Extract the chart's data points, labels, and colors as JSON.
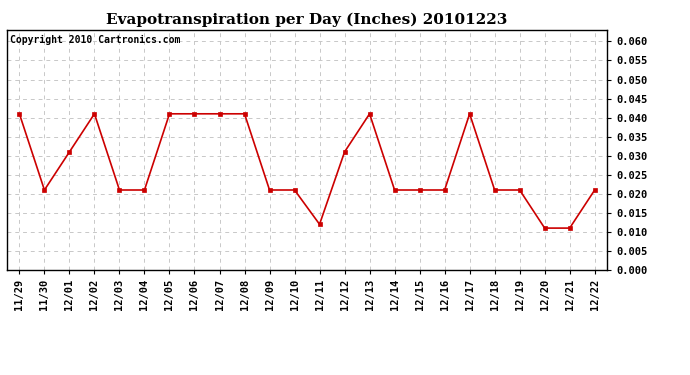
{
  "title": "Evapotranspiration per Day (Inches) 20101223",
  "copyright_text": "Copyright 2010 Cartronics.com",
  "x_labels": [
    "11/29",
    "11/30",
    "12/01",
    "12/02",
    "12/03",
    "12/04",
    "12/05",
    "12/06",
    "12/07",
    "12/08",
    "12/09",
    "12/10",
    "12/11",
    "12/12",
    "12/13",
    "12/14",
    "12/15",
    "12/16",
    "12/17",
    "12/18",
    "12/19",
    "12/20",
    "12/21",
    "12/22"
  ],
  "y_values": [
    0.041,
    0.021,
    0.031,
    0.041,
    0.021,
    0.021,
    0.041,
    0.041,
    0.041,
    0.041,
    0.021,
    0.021,
    0.012,
    0.031,
    0.041,
    0.021,
    0.021,
    0.021,
    0.041,
    0.021,
    0.021,
    0.011,
    0.011,
    0.021
  ],
  "line_color": "#cc0000",
  "marker": "s",
  "marker_size": 3,
  "marker_color": "#cc0000",
  "ylim": [
    0.0,
    0.063
  ],
  "yticks": [
    0.0,
    0.005,
    0.01,
    0.015,
    0.02,
    0.025,
    0.03,
    0.035,
    0.04,
    0.045,
    0.05,
    0.055,
    0.06
  ],
  "background_color": "#ffffff",
  "grid_color": "#c8c8c8",
  "title_fontsize": 11,
  "copyright_fontsize": 7,
  "tick_fontsize": 7.5,
  "border_color": "#000000",
  "linewidth": 1.2
}
